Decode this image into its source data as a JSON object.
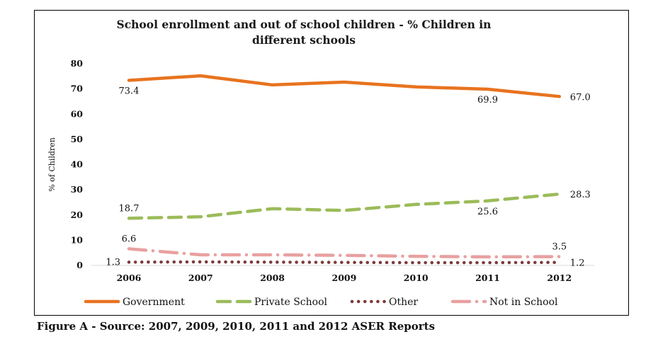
{
  "caption": "Figure A - Source: 2007, 2009, 2010, 2011 and 2012 ASER Reports",
  "chart_data": {
    "type": "line",
    "title_lines": [
      "School enrollment and out of school children - % Children in",
      "different schools"
    ],
    "xlabel": "",
    "ylabel": "% of Children",
    "categories": [
      "2006",
      "2007",
      "2008",
      "2009",
      "2010",
      "2011",
      "2012"
    ],
    "ylim": [
      0,
      80
    ],
    "yticks": [
      "0",
      "10",
      "20",
      "30",
      "40",
      "50",
      "60",
      "70",
      "80"
    ],
    "grid": false,
    "legend_position": "bottom",
    "series": [
      {
        "name": "Government",
        "color": "#e8731f",
        "style": "solid",
        "values": [
          73.4,
          75.2,
          71.6,
          72.7,
          70.8,
          69.9,
          67.0
        ]
      },
      {
        "name": "Private School",
        "color": "#9bbb59",
        "style": "dashed",
        "values": [
          18.7,
          19.3,
          22.5,
          21.8,
          24.2,
          25.6,
          28.3
        ]
      },
      {
        "name": "Other",
        "color": "#7b3a3a",
        "style": "dotted",
        "values": [
          1.3,
          1.4,
          1.3,
          1.2,
          1.1,
          1.1,
          1.2
        ]
      },
      {
        "name": "Not in School",
        "color": "#e9a0a0",
        "style": "dashdot",
        "values": [
          6.6,
          4.2,
          4.2,
          4.0,
          3.6,
          3.4,
          3.5
        ]
      }
    ],
    "data_labels": [
      {
        "series": 0,
        "index": 0,
        "text": "73.4",
        "pos": "below"
      },
      {
        "series": 0,
        "index": 5,
        "text": "69.9",
        "pos": "below"
      },
      {
        "series": 0,
        "index": 6,
        "text": "67.0",
        "pos": "right"
      },
      {
        "series": 1,
        "index": 0,
        "text": "18.7",
        "pos": "above"
      },
      {
        "series": 1,
        "index": 5,
        "text": "25.6",
        "pos": "below"
      },
      {
        "series": 1,
        "index": 6,
        "text": "28.3",
        "pos": "right"
      },
      {
        "series": 2,
        "index": 0,
        "text": "1.3",
        "pos": "left"
      },
      {
        "series": 2,
        "index": 6,
        "text": "1.2",
        "pos": "right"
      },
      {
        "series": 3,
        "index": 0,
        "text": "6.6",
        "pos": "above"
      },
      {
        "series": 3,
        "index": 6,
        "text": "3.5",
        "pos": "above"
      }
    ]
  }
}
